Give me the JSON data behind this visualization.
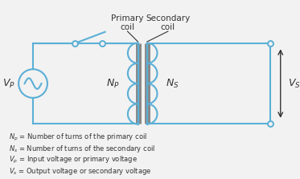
{
  "line_color": "#5bafd6",
  "bg_color": "#f2f2f2",
  "text_color": "#333333",
  "circuit_color": "#5bafd6",
  "legend_lines": [
    "$N_p$ = Number of turns of the primary coil",
    "$N_s$ = Number of turns of the secondary coil",
    "$V_p$ = Input voltage or primary voltage",
    "$V_s$ = Output voltage or secondary voltage"
  ]
}
